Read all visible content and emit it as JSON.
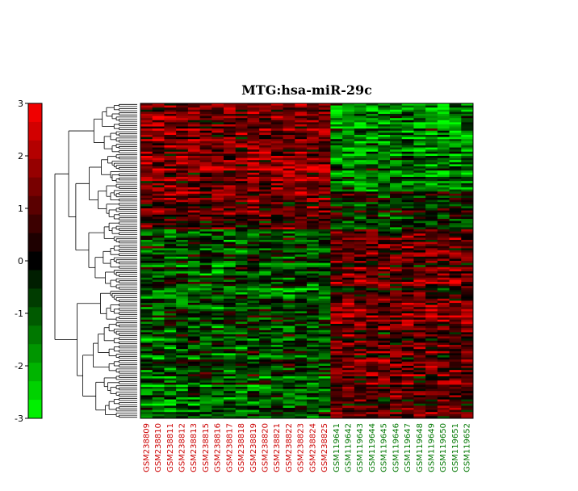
{
  "chart_data": {
    "type": "heatmap",
    "title": "MTG:hsa-miR-29c",
    "colorbar": {
      "ticks": [
        "3",
        "2",
        "1",
        "0",
        "-1",
        "-2",
        "-3"
      ],
      "range": [
        -3,
        3
      ],
      "low_color": "#00ff00",
      "mid_color": "#000000",
      "high_color": "#ff0000"
    },
    "row_dendrogram": true,
    "rows_approx": 150,
    "columns": [
      {
        "name": "GSM238809",
        "group": "red"
      },
      {
        "name": "GSM238810",
        "group": "red"
      },
      {
        "name": "GSM238811",
        "group": "red"
      },
      {
        "name": "GSM238812",
        "group": "red"
      },
      {
        "name": "GSM238813",
        "group": "red"
      },
      {
        "name": "GSM238815",
        "group": "red"
      },
      {
        "name": "GSM238816",
        "group": "red"
      },
      {
        "name": "GSM238817",
        "group": "red"
      },
      {
        "name": "GSM238818",
        "group": "red"
      },
      {
        "name": "GSM238819",
        "group": "red"
      },
      {
        "name": "GSM238820",
        "group": "red"
      },
      {
        "name": "GSM238821",
        "group": "red"
      },
      {
        "name": "GSM238822",
        "group": "red"
      },
      {
        "name": "GSM238823",
        "group": "red"
      },
      {
        "name": "GSM238824",
        "group": "red"
      },
      {
        "name": "GSM238825",
        "group": "red"
      },
      {
        "name": "GSM119641",
        "group": "green"
      },
      {
        "name": "GSM119642",
        "group": "green"
      },
      {
        "name": "GSM119643",
        "group": "green"
      },
      {
        "name": "GSM119644",
        "group": "green"
      },
      {
        "name": "GSM119645",
        "group": "green"
      },
      {
        "name": "GSM119646",
        "group": "green"
      },
      {
        "name": "GSM119647",
        "group": "green"
      },
      {
        "name": "GSM119648",
        "group": "green"
      },
      {
        "name": "GSM119649",
        "group": "green"
      },
      {
        "name": "GSM119650",
        "group": "green"
      },
      {
        "name": "GSM119651",
        "group": "green"
      },
      {
        "name": "GSM119652",
        "group": "green"
      }
    ],
    "group_colors": {
      "red": "#cc0000",
      "green": "#007700"
    },
    "row_blocks": [
      {
        "fraction": 0.28,
        "first_group_mean": 1.4,
        "second_group_mean": -1.6
      },
      {
        "fraction": 0.12,
        "first_group_mean": 0.9,
        "second_group_mean": -0.4
      },
      {
        "fraction": 0.6,
        "first_group_mean": -0.8,
        "second_group_mean": 1.1
      }
    ]
  }
}
